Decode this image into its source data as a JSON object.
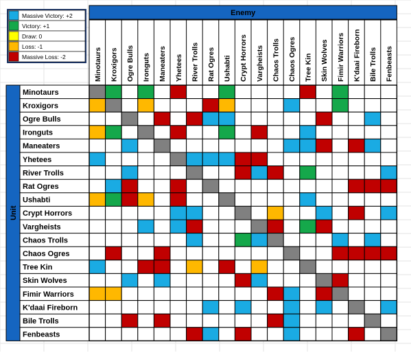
{
  "chart_data": {
    "type": "heatmap",
    "title": "",
    "col_axis_label": "Enemy",
    "row_axis_label": "Unit",
    "columns": [
      "Minotaurs",
      "Kroxigors",
      "Ogre Bulls",
      "Ironguts",
      "Maneaters",
      "Yhetees",
      "River Trolls",
      "Rat Ogres",
      "Ushabti",
      "Crypt Horrors",
      "Vargheists",
      "Chaos Trolls",
      "Chaos Ogres",
      "Tree Kin",
      "Skin Wolves",
      "Fimir Warriors",
      "K'daai Fireborn",
      "Bile Trolls",
      "Fenbeasts"
    ],
    "rows": [
      "Minotaurs",
      "Kroxigors",
      "Ogre Bulls",
      "Ironguts",
      "Maneaters",
      "Yhetees",
      "River Trolls",
      "Rat Ogres",
      "Ushabti",
      "Crypt Horrors",
      "Vargheists",
      "Chaos Trolls",
      "Chaos Ogres",
      "Tree Kin",
      "Skin Wolves",
      "Fimir Warriors",
      "K'daai Fireborn",
      "Bile Trolls",
      "Fenbeasts"
    ],
    "legend": [
      {
        "label": "Massive Victory: +2",
        "value": 2,
        "color": "#1aabe3"
      },
      {
        "label": "Victory: +1",
        "value": 1,
        "color": "#15a84b"
      },
      {
        "label": "Draw: 0",
        "value": 0,
        "color": "#ffff00"
      },
      {
        "label": "Loss: -1",
        "value": -1,
        "color": "#ffb800"
      },
      {
        "label": "Massive Loss: -2",
        "value": -2,
        "color": "#c00000"
      }
    ],
    "values": [
      [
        "X",
        "G",
        "",
        "G",
        "",
        "R",
        "",
        "",
        "G",
        "",
        "",
        "",
        "",
        "R",
        "",
        "G",
        "",
        "",
        ""
      ],
      [
        "O",
        "X",
        "",
        "O",
        "",
        "",
        "",
        "R",
        "O",
        "",
        "",
        "",
        "B",
        "",
        "",
        "G",
        "",
        "",
        ""
      ],
      [
        "",
        "",
        "X",
        "",
        "R",
        "",
        "R",
        "B",
        "B",
        "",
        "",
        "",
        "",
        "",
        "R",
        "",
        "",
        "B",
        ""
      ],
      [
        "O",
        "G",
        "",
        "X",
        "",
        "R",
        "",
        "",
        "G",
        "",
        "R",
        "",
        "",
        "B",
        "",
        "",
        "",
        "",
        ""
      ],
      [
        "",
        "",
        "B",
        "",
        "X",
        "",
        "",
        "",
        "",
        "",
        "",
        "",
        "B",
        "B",
        "R",
        "",
        "R",
        "B",
        ""
      ],
      [
        "B",
        "",
        "",
        "",
        "",
        "X",
        "B",
        "B",
        "B",
        "R",
        "R",
        "",
        "",
        "",
        "",
        "",
        "",
        "",
        ""
      ],
      [
        "",
        "",
        "B",
        "",
        "",
        "",
        "X",
        "",
        "",
        "R",
        "B",
        "R",
        "",
        "G",
        "",
        "",
        "",
        "",
        "B"
      ],
      [
        "",
        "B",
        "R",
        "",
        "",
        "R",
        "",
        "X",
        "",
        "",
        "",
        "",
        "",
        "",
        "",
        "",
        "R",
        "R",
        "R"
      ],
      [
        "O",
        "G",
        "R",
        "O",
        "",
        "R",
        "",
        "",
        "X",
        "",
        "",
        "",
        "",
        "B",
        "",
        "",
        "",
        "",
        ""
      ],
      [
        "",
        "",
        "",
        "",
        "",
        "B",
        "B",
        "",
        "",
        "X",
        "",
        "O",
        "",
        "",
        "B",
        "",
        "R",
        "",
        "B"
      ],
      [
        "",
        "",
        "",
        "B",
        "",
        "B",
        "R",
        "",
        "",
        "",
        "X",
        "R",
        "",
        "G",
        "R",
        "",
        "",
        "",
        ""
      ],
      [
        "",
        "",
        "",
        "",
        "",
        "",
        "B",
        "",
        "",
        "G",
        "B",
        "X",
        "",
        "",
        "",
        "B",
        "",
        "B",
        ""
      ],
      [
        "",
        "R",
        "",
        "",
        "R",
        "",
        "",
        "",
        "",
        "",
        "",
        "",
        "X",
        "",
        "",
        "R",
        "R",
        "R",
        "R"
      ],
      [
        "B",
        "",
        "",
        "R",
        "R",
        "",
        "O",
        "",
        "R",
        "",
        "O",
        "",
        "",
        "X",
        "",
        "",
        "",
        "",
        ""
      ],
      [
        "",
        "",
        "B",
        "",
        "B",
        "",
        "",
        "",
        "",
        "R",
        "B",
        "",
        "",
        "",
        "X",
        "R",
        "",
        "",
        ""
      ],
      [
        "O",
        "O",
        "",
        "",
        "",
        "",
        "",
        "",
        "",
        "",
        "",
        "R",
        "B",
        "",
        "R",
        "X",
        "",
        "",
        ""
      ],
      [
        "",
        "",
        "",
        "",
        "",
        "",
        "",
        "B",
        "",
        "B",
        "",
        "",
        "B",
        "",
        "B",
        "",
        "X",
        "",
        "B"
      ],
      [
        "",
        "",
        "R",
        "",
        "R",
        "",
        "",
        "",
        "",
        "",
        "",
        "R",
        "B",
        "",
        "",
        "",
        "",
        "X",
        ""
      ],
      [
        "",
        "",
        "",
        "",
        "",
        "",
        "R",
        "B",
        "",
        "R",
        "",
        "",
        "B",
        "",
        "",
        "",
        "R",
        "",
        "X"
      ]
    ],
    "cell_codes": {
      "B": "#1aabe3",
      "G": "#15a84b",
      "O": "#ffb800",
      "R": "#c00000",
      "X": "#808080",
      "": "#ffffff"
    }
  }
}
